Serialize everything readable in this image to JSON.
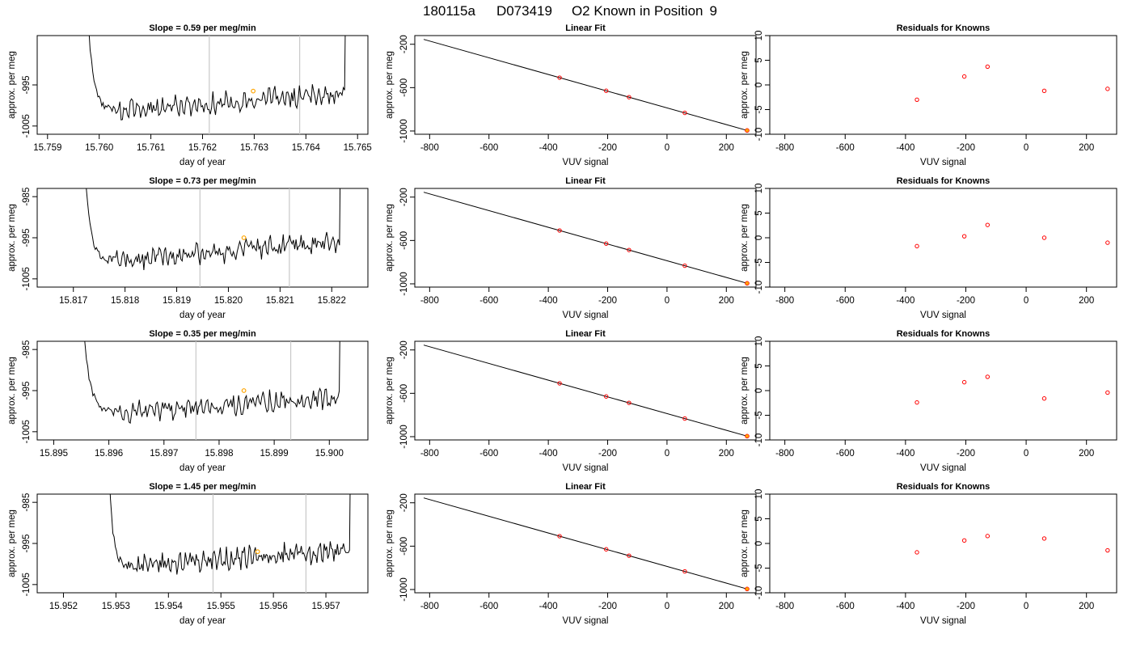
{
  "page_title": {
    "run": "180115a",
    "tank": "D073419",
    "label": "O2 Known in Position",
    "position": "9"
  },
  "colors": {
    "series_line": "#000000",
    "marker_vline": "#c8c8c8",
    "highlight_point": "#ffa500",
    "residual_point": "#ff0000"
  },
  "chart_data": [
    {
      "row": 1,
      "kind": "trace",
      "type": "line",
      "title": "Slope =  0.59  per meg/min",
      "xlabel": "day of year",
      "ylabel": "approx. per meg",
      "xlim": [
        15.7588,
        15.7652
      ],
      "ylim": [
        -1007,
        -983
      ],
      "xticks": [
        "15.759",
        "15.760",
        "15.761",
        "15.762",
        "15.763",
        "15.764",
        "15.765"
      ],
      "yticks": [
        "-995",
        "-1005"
      ],
      "start": 15.75975,
      "end": 15.76475,
      "dip_end": 15.7604,
      "base": -1001.2,
      "trend": 4.2,
      "amp": 1.9,
      "vlines": [
        15.76213,
        15.76388
      ],
      "highlight": {
        "x": 15.76298,
        "y": -996.5
      }
    },
    {
      "row": 1,
      "kind": "fit",
      "type": "line",
      "title": "Linear Fit",
      "xlabel": "VUV signal",
      "ylabel": "approx. per meg",
      "xlim": [
        -850,
        300
      ],
      "ylim": [
        -1030,
        -120
      ],
      "xticks": [
        "-800",
        "-600",
        "-400",
        "-200",
        "0",
        "200"
      ],
      "yticks": [
        "-200",
        "-600",
        "-1000"
      ],
      "line": [
        [
          -820,
          -155
        ],
        [
          270,
          -995
        ]
      ],
      "points": [
        [
          -362,
          -508
        ],
        [
          -205,
          -629
        ],
        [
          -128,
          -688
        ],
        [
          60,
          -833
        ]
      ],
      "highlight": {
        "x": 270,
        "y": -995
      }
    },
    {
      "row": 1,
      "kind": "resid",
      "type": "scatter",
      "title": "Residuals for Knowns",
      "xlabel": "VUV signal",
      "ylabel": "approx. per meg",
      "xlim": [
        -850,
        300
      ],
      "ylim": [
        -10,
        10
      ],
      "xticks": [
        "-800",
        "-600",
        "-400",
        "-200",
        "0",
        "200"
      ],
      "yticks": [
        "10",
        "5",
        "0",
        "-5",
        "-10"
      ],
      "x": [
        -362,
        -205,
        -128,
        60,
        270
      ],
      "y": [
        -3.0,
        1.7,
        3.7,
        -1.2,
        -0.8
      ]
    },
    {
      "row": 2,
      "kind": "trace",
      "type": "line",
      "title": "Slope =  0.73  per meg/min",
      "xlabel": "day of year",
      "ylabel": "approx. per meg",
      "xlim": [
        15.8163,
        15.8227
      ],
      "ylim": [
        -1007,
        -983
      ],
      "xticks": [
        "15.817",
        "15.818",
        "15.819",
        "15.820",
        "15.821",
        "15.822"
      ],
      "yticks": [
        "-985",
        "-995",
        "-1005"
      ],
      "start": 15.8172,
      "end": 15.82215,
      "dip_end": 15.8178,
      "base": -1000.5,
      "trend": 4.5,
      "amp": 1.9,
      "vlines": [
        15.81945,
        15.82118
      ],
      "highlight": {
        "x": 15.8203,
        "y": -995
      }
    },
    {
      "row": 2,
      "kind": "fit",
      "type": "line",
      "title": "Linear Fit",
      "xlabel": "VUV signal",
      "ylabel": "approx. per meg",
      "xlim": [
        -850,
        300
      ],
      "ylim": [
        -1030,
        -120
      ],
      "xticks": [
        "-800",
        "-600",
        "-400",
        "-200",
        "0",
        "200"
      ],
      "yticks": [
        "-200",
        "-600",
        "-1000"
      ],
      "line": [
        [
          -820,
          -155
        ],
        [
          270,
          -995
        ]
      ],
      "points": [
        [
          -362,
          -508
        ],
        [
          -205,
          -629
        ],
        [
          -128,
          -688
        ],
        [
          60,
          -833
        ]
      ],
      "highlight": {
        "x": 270,
        "y": -995
      }
    },
    {
      "row": 2,
      "kind": "resid",
      "type": "scatter",
      "title": "Residuals for Knowns",
      "xlabel": "VUV signal",
      "ylabel": "approx. per meg",
      "xlim": [
        -850,
        300
      ],
      "ylim": [
        -10,
        10
      ],
      "xticks": [
        "-800",
        "-600",
        "-400",
        "-200",
        "0",
        "200"
      ],
      "yticks": [
        "10",
        "5",
        "0",
        "-5",
        "-10"
      ],
      "x": [
        -362,
        -205,
        -128,
        60,
        270
      ],
      "y": [
        -1.7,
        0.3,
        2.6,
        0.0,
        -1.0
      ]
    },
    {
      "row": 3,
      "kind": "trace",
      "type": "line",
      "title": "Slope =  0.35  per meg/min",
      "xlabel": "day of year",
      "ylabel": "approx. per meg",
      "xlim": [
        15.8947,
        15.9007
      ],
      "ylim": [
        -1007,
        -983
      ],
      "xticks": [
        "15.895",
        "15.896",
        "15.897",
        "15.898",
        "15.899",
        "15.900"
      ],
      "yticks": [
        "-985",
        "-995",
        "-1005"
      ],
      "start": 15.8955,
      "end": 15.90018,
      "dip_end": 15.8962,
      "base": -1000.5,
      "trend": 4.0,
      "amp": 1.9,
      "vlines": [
        15.89758,
        15.8993
      ],
      "highlight": {
        "x": 15.89845,
        "y": -995
      }
    },
    {
      "row": 3,
      "kind": "fit",
      "type": "line",
      "title": "Linear Fit",
      "xlabel": "VUV signal",
      "ylabel": "approx. per meg",
      "xlim": [
        -850,
        300
      ],
      "ylim": [
        -1030,
        -120
      ],
      "xticks": [
        "-800",
        "-600",
        "-400",
        "-200",
        "0",
        "200"
      ],
      "yticks": [
        "-200",
        "-600",
        "-1000"
      ],
      "line": [
        [
          -820,
          -155
        ],
        [
          270,
          -995
        ]
      ],
      "points": [
        [
          -362,
          -508
        ],
        [
          -205,
          -629
        ],
        [
          -128,
          -688
        ],
        [
          60,
          -833
        ]
      ],
      "highlight": {
        "x": 270,
        "y": -995
      }
    },
    {
      "row": 3,
      "kind": "resid",
      "type": "scatter",
      "title": "Residuals for Knowns",
      "xlabel": "VUV signal",
      "ylabel": "approx. per meg",
      "xlim": [
        -850,
        300
      ],
      "ylim": [
        -10,
        10
      ],
      "xticks": [
        "-800",
        "-600",
        "-400",
        "-200",
        "0",
        "200"
      ],
      "yticks": [
        "10",
        "5",
        "0",
        "-5",
        "-10"
      ],
      "x": [
        -362,
        -205,
        -128,
        60,
        270
      ],
      "y": [
        -2.4,
        1.7,
        2.8,
        -1.6,
        -0.4
      ]
    },
    {
      "row": 4,
      "kind": "trace",
      "type": "line",
      "title": "Slope =  1.45  per meg/min",
      "xlabel": "day of year",
      "ylabel": "approx. per meg",
      "xlim": [
        15.9515,
        15.9578
      ],
      "ylim": [
        -1007,
        -983
      ],
      "xticks": [
        "15.952",
        "15.953",
        "15.954",
        "15.955",
        "15.956",
        "15.957"
      ],
      "yticks": [
        "-985",
        "-995",
        "-1005"
      ],
      "start": 15.95285,
      "end": 15.95745,
      "dip_end": 15.9533,
      "base": -1000.5,
      "trend": 4.0,
      "amp": 1.9,
      "vlines": [
        15.95485,
        15.95662
      ],
      "highlight": {
        "x": 15.9557,
        "y": -997
      }
    },
    {
      "row": 4,
      "kind": "fit",
      "type": "line",
      "title": "Linear Fit",
      "xlabel": "VUV signal",
      "ylabel": "approx. per meg",
      "xlim": [
        -850,
        300
      ],
      "ylim": [
        -1030,
        -120
      ],
      "xticks": [
        "-800",
        "-600",
        "-400",
        "-200",
        "0",
        "200"
      ],
      "yticks": [
        "-200",
        "-600",
        "-1000"
      ],
      "line": [
        [
          -820,
          -155
        ],
        [
          270,
          -995
        ]
      ],
      "points": [
        [
          -362,
          -508
        ],
        [
          -205,
          -629
        ],
        [
          -128,
          -688
        ],
        [
          60,
          -833
        ]
      ],
      "highlight": {
        "x": 270,
        "y": -995
      }
    },
    {
      "row": 4,
      "kind": "resid",
      "type": "scatter",
      "title": "Residuals for Knowns",
      "xlabel": "VUV signal",
      "ylabel": "approx. per meg",
      "xlim": [
        -850,
        300
      ],
      "ylim": [
        -10,
        10
      ],
      "xticks": [
        "-800",
        "-600",
        "-400",
        "-200",
        "0",
        "200"
      ],
      "yticks": [
        "10",
        "5",
        "0",
        "-5",
        "-10"
      ],
      "x": [
        -362,
        -205,
        -128,
        60,
        270
      ],
      "y": [
        -1.8,
        0.6,
        1.5,
        1.0,
        -1.4
      ]
    }
  ]
}
